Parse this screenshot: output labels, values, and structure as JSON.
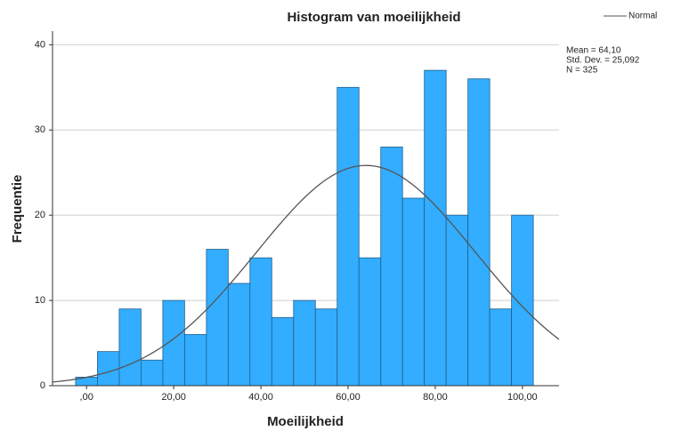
{
  "chart_data": {
    "type": "histogram",
    "title": "Histogram van moeilijkheid",
    "x_label": "Moeilijkheid",
    "y_label": "Frequentie",
    "bins": [
      -2.5,
      2.5,
      7.5,
      12.5,
      17.5,
      22.5,
      27.5,
      32.5,
      37.5,
      42.5,
      47.5,
      52.5,
      57.5,
      62.5,
      67.5,
      72.5,
      77.5,
      82.5,
      87.5,
      92.5,
      97.5,
      102.5
    ],
    "values": [
      1,
      4,
      9,
      3,
      10,
      6,
      16,
      12,
      15,
      8,
      10,
      9,
      35,
      15,
      28,
      22,
      37,
      20,
      36,
      9,
      20
    ],
    "color": "#33adff",
    "edge_color": "#1f5f8b",
    "xlim": [
      -7.8,
      108.4
    ],
    "xticks": [
      {
        "value": 0,
        "label": ",00"
      },
      {
        "value": 20,
        "label": "20,00"
      },
      {
        "value": 40,
        "label": "40,00"
      },
      {
        "value": 60,
        "label": "60,00"
      },
      {
        "value": 80,
        "label": "80,00"
      },
      {
        "value": 100,
        "label": "100,00"
      }
    ],
    "ylim": [
      0,
      41.6
    ],
    "yticks": [
      0,
      10,
      20,
      30,
      40
    ],
    "grid": true,
    "curve": {
      "name": "Normal",
      "color": "#555555"
    },
    "stats": {
      "mean": {
        "value": 64.1,
        "label": "Mean = 64,10"
      },
      "std_dev": {
        "value": 25.092,
        "label": "Std. Dev. = 25,092"
      },
      "n": {
        "value": 325,
        "label": "N = 325"
      }
    }
  }
}
